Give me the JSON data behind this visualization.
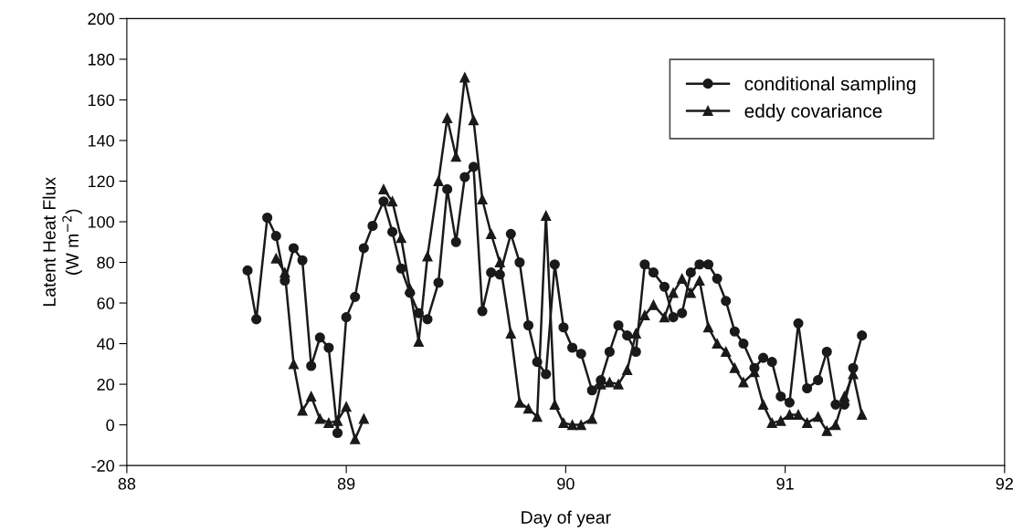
{
  "chart_data": {
    "type": "line",
    "xlabel": "Day of year",
    "ylabel": "Latent Heat Flux\n(W m$^{−2}$)",
    "xlim": [
      88,
      92
    ],
    "xticks": [
      88,
      89,
      90,
      91,
      92
    ],
    "ylim": [
      -20,
      200
    ],
    "yticks": [
      -20,
      0,
      20,
      40,
      60,
      80,
      100,
      120,
      140,
      160,
      180,
      200
    ],
    "grid": false,
    "legend": "top right",
    "line_style": "solid",
    "series": [
      {
        "name": "conditional sampling",
        "color": "#1a1a1a",
        "marker": "circle",
        "x": [
          88.55,
          88.59,
          88.64,
          88.68,
          88.72,
          88.76,
          88.8,
          88.84,
          88.88,
          88.92,
          88.96,
          89.0,
          89.04,
          89.08,
          89.12,
          89.17,
          89.21,
          89.25,
          89.29,
          89.33,
          89.37,
          89.42,
          89.46,
          89.5,
          89.54,
          89.58,
          89.62,
          89.66,
          89.7,
          89.75,
          89.79,
          89.83,
          89.87,
          89.91,
          89.95,
          89.99,
          90.03,
          90.07,
          90.12,
          90.16,
          90.2,
          90.24,
          90.28,
          90.32,
          90.36,
          90.4,
          90.45,
          90.49,
          90.53,
          90.57,
          90.61,
          90.65,
          90.69,
          90.73,
          90.77,
          90.81,
          90.86,
          90.9,
          90.94,
          90.98,
          91.02,
          91.06,
          91.1,
          91.15,
          91.19,
          91.23,
          91.27,
          91.31,
          91.35
        ],
        "values": [
          76,
          52,
          102,
          93,
          71,
          87,
          81,
          29,
          43,
          38,
          -4,
          53,
          63,
          87,
          98,
          110,
          95,
          77,
          65,
          55,
          52,
          70,
          116,
          90,
          122,
          127,
          56,
          75,
          74,
          94,
          80,
          49,
          31,
          25,
          79,
          48,
          38,
          35,
          17,
          22,
          36,
          49,
          44,
          36,
          79,
          75,
          68,
          53,
          55,
          75,
          79,
          79,
          72,
          61,
          46,
          40,
          28,
          33,
          31,
          14,
          11,
          50,
          18,
          22,
          36,
          10,
          10,
          28,
          44
        ]
      },
      {
        "name": "eddy covariance",
        "color": "#1a1a1a",
        "marker": "triangle",
        "x": [
          88.68,
          88.72,
          88.76,
          88.8,
          88.84,
          88.88,
          88.92,
          88.96,
          89.0,
          89.04,
          89.08,
          89.12,
          89.17,
          89.21,
          89.25,
          89.29,
          89.33,
          89.37,
          89.42,
          89.46,
          89.5,
          89.54,
          89.58,
          89.62,
          89.66,
          89.7,
          89.75,
          89.79,
          89.83,
          89.87,
          89.91,
          89.95,
          89.99,
          90.03,
          90.07,
          90.12,
          90.16,
          90.2,
          90.24,
          90.28,
          90.32,
          90.36,
          90.4,
          90.45,
          90.49,
          90.53,
          90.57,
          90.61,
          90.65,
          90.69,
          90.73,
          90.77,
          90.81,
          90.86,
          90.9,
          90.94,
          90.98,
          91.02,
          91.06,
          91.1,
          91.15,
          91.19,
          91.23,
          91.27,
          91.31,
          91.35
        ],
        "values": [
          82,
          75,
          30,
          7,
          14,
          3,
          1,
          2,
          9,
          -7,
          3,
          null,
          116,
          110,
          92,
          67,
          41,
          83,
          120,
          151,
          132,
          171,
          150,
          111,
          94,
          80,
          45,
          11,
          8,
          4,
          103,
          10,
          1,
          0,
          0,
          3,
          20,
          21,
          20,
          27,
          45,
          54,
          59,
          53,
          65,
          72,
          65,
          71,
          48,
          40,
          36,
          28,
          21,
          26,
          10,
          1,
          2,
          5,
          5,
          1,
          4,
          -3,
          0,
          14,
          25,
          5
        ]
      }
    ]
  }
}
